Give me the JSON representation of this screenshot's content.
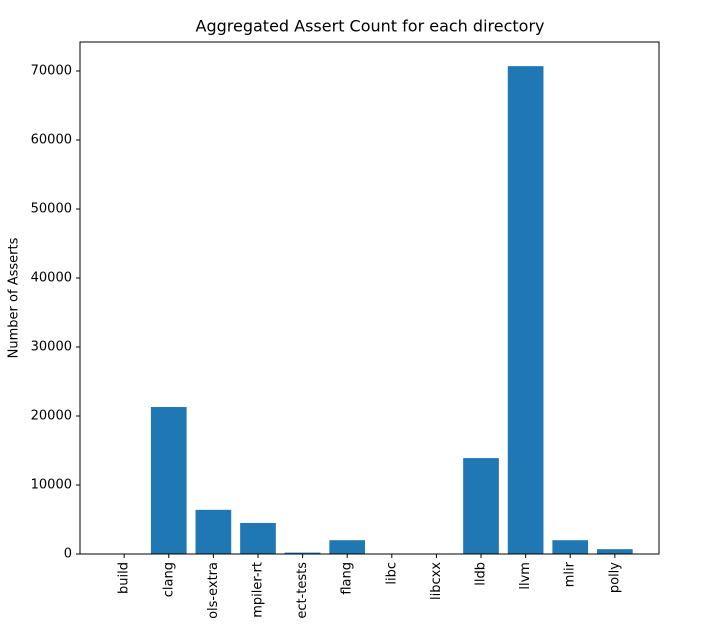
{
  "chart_data": {
    "type": "bar",
    "title": "Aggregated Assert Count for each directory",
    "y_label": "Number of Asserts",
    "categories": [
      "build",
      "clang",
      "ols-extra",
      "mpiler-rt",
      "ect-tests",
      "flang",
      "libc",
      "libcxx",
      "lldb",
      "llvm",
      "mlir",
      "polly"
    ],
    "values": [
      30,
      21300,
      6400,
      4500,
      200,
      2000,
      10,
      20,
      13900,
      70700,
      2000,
      700
    ],
    "color": "#1f77b4",
    "ylim": [
      0,
      74200
    ],
    "yticks": [
      0,
      10000,
      20000,
      30000,
      40000,
      50000,
      60000,
      70000
    ],
    "grid": false
  }
}
